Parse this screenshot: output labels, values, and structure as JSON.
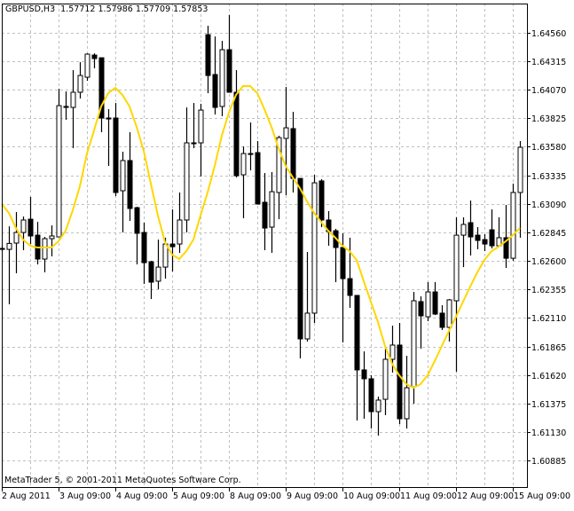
{
  "header": {
    "symbol": "GBPUSD,H3",
    "open": "1.57712",
    "high": "1.57986",
    "low": "1.57709",
    "close": "1.57853"
  },
  "copyright": "MetaTrader 5, © 2001-2011 MetaQuotes Software Corp.",
  "colors": {
    "background": "#ffffff",
    "bull_body": "#ffffff",
    "bear_body": "#000000",
    "candle_outline": "#000000",
    "grid": "#c0c0c0",
    "ma_line": "#ffd700"
  },
  "chart_data": {
    "type": "candlestick",
    "grid": true,
    "ylim": [
      1.6066,
      1.64808
    ],
    "y_ticks": [
      "1.64560",
      "1.64315",
      "1.64070",
      "1.63825",
      "1.63580",
      "1.63335",
      "1.63090",
      "1.62845",
      "1.62600",
      "1.62355",
      "1.62110",
      "1.61865",
      "1.61620",
      "1.61375",
      "1.61130",
      "1.60885"
    ],
    "x_tick_labels": [
      {
        "bar": 0,
        "label": "2 Aug 2011"
      },
      {
        "bar": 8,
        "label": "3 Aug 09:00"
      },
      {
        "bar": 16,
        "label": "4 Aug 09:00"
      },
      {
        "bar": 24,
        "label": "5 Aug 09:00"
      },
      {
        "bar": 32,
        "label": "8 Aug 09:00"
      },
      {
        "bar": 40,
        "label": "9 Aug 09:00"
      },
      {
        "bar": 48,
        "label": "10 Aug 09:00"
      },
      {
        "bar": 56,
        "label": "11 Aug 09:00"
      },
      {
        "bar": 64,
        "label": "12 Aug 09:00"
      },
      {
        "bar": 72,
        "label": "15 Aug 09:00"
      }
    ],
    "ohlc_fields": [
      "open",
      "high",
      "low",
      "close"
    ],
    "candles": [
      [
        1.62707,
        1.6273,
        1.62684,
        1.627
      ],
      [
        1.62699,
        1.62897,
        1.62228,
        1.6275
      ],
      [
        1.62753,
        1.63019,
        1.62494,
        1.62844
      ],
      [
        1.62844,
        1.62981,
        1.62692,
        1.62951
      ],
      [
        1.62958,
        1.63149,
        1.62745,
        1.62814
      ],
      [
        1.62821,
        1.62935,
        1.6257,
        1.62616
      ],
      [
        1.62616,
        1.62806,
        1.62502,
        1.62791
      ],
      [
        1.62791,
        1.62905,
        1.62639,
        1.62814
      ],
      [
        1.62806,
        1.64077,
        1.62806,
        1.63932
      ],
      [
        1.63925,
        1.64054,
        1.63811,
        1.6392
      ],
      [
        1.63917,
        1.64237,
        1.63567,
        1.64047
      ],
      [
        1.64047,
        1.64305,
        1.63993,
        1.64191
      ],
      [
        1.64176,
        1.64381,
        1.64145,
        1.64374
      ],
      [
        1.64366,
        1.64381,
        1.64252,
        1.64336
      ],
      [
        1.64343,
        1.64343,
        1.63704,
        1.63826
      ],
      [
        1.63826,
        1.63902,
        1.63415,
        1.63818
      ],
      [
        1.63826,
        1.63955,
        1.63156,
        1.63187
      ],
      [
        1.63202,
        1.63537,
        1.62844,
        1.63461
      ],
      [
        1.63461,
        1.63704,
        1.62943,
        1.6305
      ],
      [
        1.63057,
        1.63065,
        1.6257,
        1.62837
      ],
      [
        1.62844,
        1.62928,
        1.62403,
        1.62585
      ],
      [
        1.62593,
        1.62601,
        1.62273,
        1.62418
      ],
      [
        1.62426,
        1.62783,
        1.62357,
        1.62547
      ],
      [
        1.62547,
        1.62799,
        1.62448,
        1.62745
      ],
      [
        1.62745,
        1.63042,
        1.62509,
        1.62722
      ],
      [
        1.62745,
        1.63187,
        1.62669,
        1.62951
      ],
      [
        1.62951,
        1.63917,
        1.62844,
        1.63613
      ],
      [
        1.63613,
        1.63955,
        1.63567,
        1.6361
      ],
      [
        1.63613,
        1.63948,
        1.63324,
        1.63894
      ],
      [
        1.64541,
        1.64617,
        1.64039,
        1.64191
      ],
      [
        1.64199,
        1.64526,
        1.63856,
        1.63917
      ],
      [
        1.63925,
        1.64488,
        1.63841,
        1.64412
      ],
      [
        1.64412,
        1.64709,
        1.64047,
        1.64047
      ],
      [
        1.64047,
        1.64237,
        1.63316,
        1.63331
      ],
      [
        1.63339,
        1.63582,
        1.62966,
        1.63521
      ],
      [
        1.63521,
        1.63788,
        1.63377,
        1.63518
      ],
      [
        1.63529,
        1.63628,
        1.63088,
        1.63088
      ],
      [
        1.63103,
        1.63354,
        1.62692,
        1.62882
      ],
      [
        1.6289,
        1.63362,
        1.62669,
        1.63194
      ],
      [
        1.63187,
        1.63674,
        1.62958,
        1.63658
      ],
      [
        1.63651,
        1.64092,
        1.63164,
        1.63742
      ],
      [
        1.63735,
        1.63879,
        1.63187,
        1.63308
      ],
      [
        1.63308,
        1.63308,
        1.61764,
        1.61931
      ],
      [
        1.61931,
        1.62677,
        1.61908,
        1.62152
      ],
      [
        1.62152,
        1.63339,
        1.62068,
        1.6327
      ],
      [
        1.63286,
        1.63301,
        1.6289,
        1.62951
      ],
      [
        1.62951,
        1.63027,
        1.6273,
        1.62852
      ],
      [
        1.62859,
        1.62875,
        1.62418,
        1.62715
      ],
      [
        1.62715,
        1.62837,
        1.61901,
        1.62448
      ],
      [
        1.62448,
        1.62799,
        1.62197,
        1.62304
      ],
      [
        1.62304,
        1.62304,
        1.61231,
        1.61665
      ],
      [
        1.61665,
        1.61824,
        1.61246,
        1.61589
      ],
      [
        1.61589,
        1.61619,
        1.61162,
        1.61307
      ],
      [
        1.61307,
        1.61436,
        1.61101,
        1.61406
      ],
      [
        1.61413,
        1.61855,
        1.61277,
        1.61756
      ],
      [
        1.61756,
        1.62045,
        1.61642,
        1.61878
      ],
      [
        1.61878,
        1.62068,
        1.612,
        1.61246
      ],
      [
        1.61246,
        1.61786,
        1.61162,
        1.61512
      ],
      [
        1.6152,
        1.62334,
        1.61375,
        1.62258
      ],
      [
        1.62251,
        1.62296,
        1.61847,
        1.62129
      ],
      [
        1.62121,
        1.62418,
        1.62083,
        1.62334
      ],
      [
        1.62334,
        1.62418,
        1.62136,
        1.62144
      ],
      [
        1.62152,
        1.6222,
        1.62007,
        1.6203
      ],
      [
        1.6203,
        1.62273,
        1.61908,
        1.62266
      ],
      [
        1.62258,
        1.62974,
        1.61649,
        1.62821
      ],
      [
        1.62821,
        1.62974,
        1.62547,
        1.62913
      ],
      [
        1.62928,
        1.63118,
        1.62646,
        1.62806
      ],
      [
        1.62821,
        1.6289,
        1.627,
        1.62776
      ],
      [
        1.62783,
        1.62829,
        1.62684,
        1.62745
      ],
      [
        1.62867,
        1.63042,
        1.62707,
        1.6273
      ],
      [
        1.6273,
        1.62974,
        1.62722,
        1.62799
      ],
      [
        1.62799,
        1.6308,
        1.6254,
        1.62623
      ],
      [
        1.62623,
        1.63263,
        1.62601,
        1.63187
      ],
      [
        1.63187,
        1.63628,
        1.62799,
        1.63575
      ]
    ],
    "moving_average": [
      1.63088,
      1.63012,
      1.62882,
      1.62783,
      1.6273,
      1.62715,
      1.62715,
      1.62715,
      1.62768,
      1.62859,
      1.63034,
      1.6324,
      1.63521,
      1.63719,
      1.63925,
      1.64039,
      1.64085,
      1.64024,
      1.63925,
      1.6375,
      1.63544,
      1.63263,
      1.62989,
      1.6276,
      1.62654,
      1.62616,
      1.62684,
      1.62783,
      1.62989,
      1.63187,
      1.63415,
      1.63674,
      1.63872,
      1.64024,
      1.641,
      1.641,
      1.64039,
      1.63902,
      1.6375,
      1.63567,
      1.63415,
      1.63316,
      1.63225,
      1.63111,
      1.63012,
      1.62935,
      1.62859,
      1.62799,
      1.6273,
      1.62684,
      1.62608,
      1.62426,
      1.62251,
      1.62076,
      1.6187,
      1.61718,
      1.61619,
      1.61543,
      1.61512,
      1.61543,
      1.61619,
      1.61741,
      1.6187,
      1.61999,
      1.62121,
      1.62251,
      1.6238,
      1.62502,
      1.62608,
      1.62684,
      1.62722,
      1.62768,
      1.62821,
      1.62882
    ]
  }
}
